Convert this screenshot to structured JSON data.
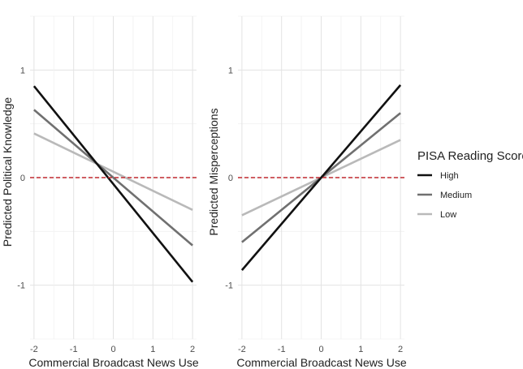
{
  "chart_data": [
    {
      "type": "line",
      "xlabel": "Commercial Broadcast News Use",
      "ylabel": "Predicted Political Knowledge",
      "xlim": [
        -2.1,
        2.1
      ],
      "ylim": [
        -1.5,
        1.5
      ],
      "xticks": [
        -2,
        -1,
        0,
        1,
        2
      ],
      "yticks": [
        -1,
        0,
        1
      ],
      "x_tick_labels": [
        "-2",
        "-1",
        "0",
        "1",
        "2"
      ],
      "y_tick_labels": [
        "-1",
        "0",
        "1"
      ],
      "reference_line": 0,
      "series": [
        {
          "name": "High",
          "x": [
            -2,
            2
          ],
          "values": [
            0.85,
            -0.97
          ]
        },
        {
          "name": "Medium",
          "x": [
            -2,
            2
          ],
          "values": [
            0.63,
            -0.63
          ]
        },
        {
          "name": "Low",
          "x": [
            -2,
            2
          ],
          "values": [
            0.41,
            -0.3
          ]
        }
      ]
    },
    {
      "type": "line",
      "xlabel": "Commercial Broadcast News Use",
      "ylabel": "Predicted Misperceptions",
      "xlim": [
        -2.1,
        2.1
      ],
      "ylim": [
        -1.5,
        1.5
      ],
      "xticks": [
        -2,
        -1,
        0,
        1,
        2
      ],
      "yticks": [
        -1,
        0,
        1
      ],
      "x_tick_labels": [
        "-2",
        "-1",
        "0",
        "1",
        "2"
      ],
      "y_tick_labels": [
        "-1",
        "0",
        "1"
      ],
      "reference_line": 0,
      "series": [
        {
          "name": "High",
          "x": [
            -2,
            2
          ],
          "values": [
            -0.86,
            0.86
          ]
        },
        {
          "name": "Medium",
          "x": [
            -2,
            2
          ],
          "values": [
            -0.6,
            0.6
          ]
        },
        {
          "name": "Low",
          "x": [
            -2,
            2
          ],
          "values": [
            -0.35,
            0.35
          ]
        }
      ]
    }
  ],
  "legend": {
    "title": "PISA Reading Score",
    "placement": "right",
    "items": [
      {
        "label": "High",
        "color": "#111111"
      },
      {
        "label": "Medium",
        "color": "#707070"
      },
      {
        "label": "Low",
        "color": "#b9b9b9"
      }
    ]
  },
  "colors": {
    "High": "#111111",
    "Medium": "#707070",
    "Low": "#b9b9b9",
    "reference_line": "#c0282f",
    "grid_major": "#e3e3e3",
    "grid_minor": "#f1f1f1"
  }
}
